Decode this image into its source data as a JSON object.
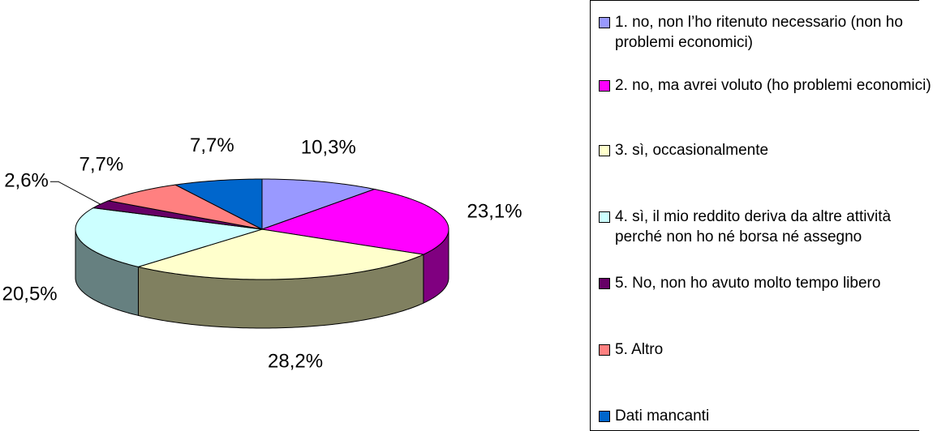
{
  "chart_data": {
    "type": "pie3d",
    "categories": [
      "1. no, non l’ho ritenuto necessario (non ho problemi economici)",
      "2. no, ma avrei voluto (ho problemi economici)",
      "3. sì, occasionalmente",
      "4. sì, il mio reddito deriva da altre attività perché non ho né borsa né assegno",
      "5. No, non ho avuto molto tempo libero",
      "5. Altro",
      "Dati mancanti"
    ],
    "values": [
      10.3,
      23.1,
      28.2,
      20.5,
      2.6,
      7.7,
      7.7
    ],
    "value_labels": [
      "10,3%",
      "23,1%",
      "28,2%",
      "20,5%",
      "2,6%",
      "7,7%",
      "7,7%"
    ],
    "colors": [
      "#9999ff",
      "#ff00ff",
      "#ffffcc",
      "#ccffff",
      "#660066",
      "#ff8080",
      "#0066cc"
    ],
    "side_colors": [
      "#6b6bb3",
      "#800080",
      "#808060",
      "#668080",
      "#330033",
      "#b35a5a",
      "#004080"
    ],
    "legend": "right"
  }
}
